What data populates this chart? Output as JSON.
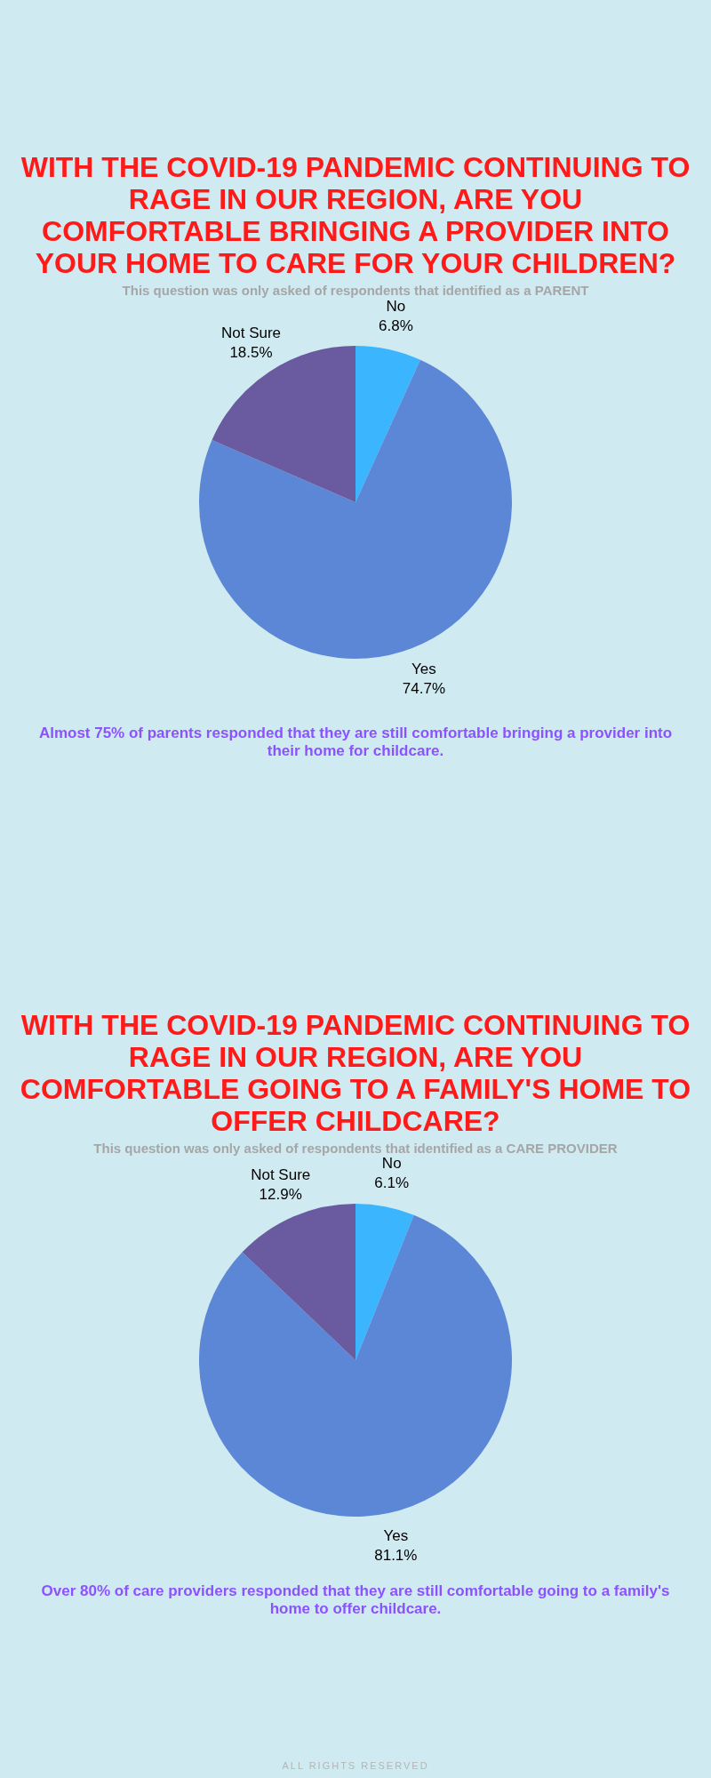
{
  "chart_data": [
    {
      "type": "pie",
      "title": "WITH THE COVID-19 PANDEMIC CONTINUING TO RAGE IN OUR REGION, ARE YOU COMFORTABLE BRINGING A PROVIDER INTO YOUR HOME TO CARE FOR YOUR CHILDREN?",
      "subtitle": "This question was only asked of respondents that identified as a PARENT",
      "categories": [
        "No",
        "Yes",
        "Not Sure"
      ],
      "values": [
        6.8,
        74.7,
        18.5
      ],
      "value_labels": [
        "6.8%",
        "74.7%",
        "18.5%"
      ],
      "colors": [
        "#3bb5fd",
        "#5c87d6",
        "#6a5a9f"
      ],
      "legend": false,
      "annotations": [
        "Almost 75% of parents responded that they are still comfortable bringing a provider into their home for childcare."
      ]
    },
    {
      "type": "pie",
      "title": "WITH THE COVID-19 PANDEMIC CONTINUING TO RAGE IN OUR REGION, ARE YOU COMFORTABLE GOING TO A FAMILY'S HOME TO OFFER CHILDCARE?",
      "subtitle": "This question was only asked of respondents that identified as a CARE PROVIDER",
      "categories": [
        "No",
        "Yes",
        "Not Sure"
      ],
      "values": [
        6.1,
        81.1,
        12.9
      ],
      "value_labels": [
        "6.1%",
        "81.1%",
        "12.9%"
      ],
      "colors": [
        "#3bb5fd",
        "#5c87d6",
        "#6a5a9f"
      ],
      "legend": false,
      "annotations": [
        "Over 80% of care providers responded that they are still comfortable going to a family's home to offer childcare.",
        "ALL RIGHTS RESERVED"
      ]
    }
  ]
}
